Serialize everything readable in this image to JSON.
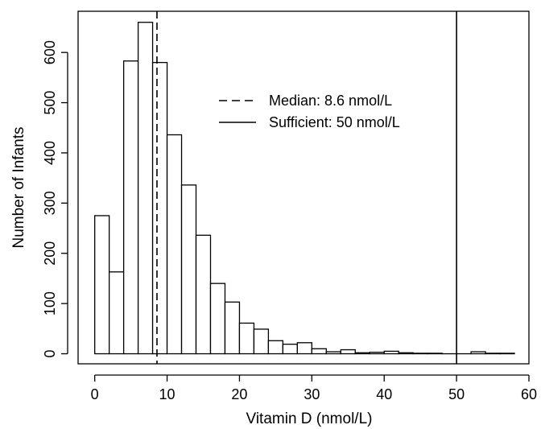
{
  "chart_data": {
    "type": "bar",
    "title": "",
    "xlabel": "Vitamin D (nmol/L)",
    "ylabel": "Number of Infants",
    "xlim": [
      -2.3,
      60
    ],
    "ylim": [
      -20,
      682
    ],
    "x_ticks": [
      0,
      10,
      20,
      30,
      40,
      50,
      60
    ],
    "x_tick_labels": [
      "0",
      "10",
      "20",
      "30",
      "40",
      "50",
      "60"
    ],
    "y_ticks": [
      0,
      100,
      200,
      300,
      400,
      500,
      600
    ],
    "y_tick_labels": [
      "0",
      "100",
      "200",
      "300",
      "400",
      "500",
      "600"
    ],
    "bin_width": 2,
    "bin_edges": [
      0,
      2,
      4,
      6,
      8,
      10,
      12,
      14,
      16,
      18,
      20,
      22,
      24,
      26,
      28,
      30,
      32,
      34,
      36,
      38,
      40,
      42,
      44,
      46,
      48,
      50,
      52,
      54,
      56,
      58
    ],
    "values": [
      275,
      163,
      583,
      660,
      580,
      436,
      336,
      236,
      140,
      103,
      61,
      49,
      26,
      19,
      22,
      10,
      4,
      8,
      2,
      3,
      5,
      2,
      1,
      1,
      0,
      0,
      4,
      1,
      1
    ],
    "reference_lines": [
      {
        "label": "Median: 8.6 nmol/L",
        "x": 8.6,
        "style": "dashed"
      },
      {
        "label": "Sufficient: 50 nmol/L",
        "x": 50,
        "style": "solid"
      }
    ],
    "legend_position": "top-center",
    "grid": false
  }
}
